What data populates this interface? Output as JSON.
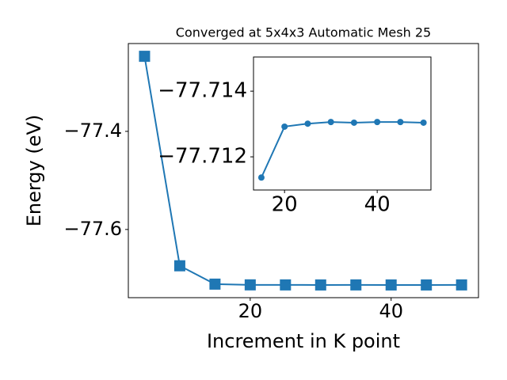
{
  "chart_data": [
    {
      "type": "line",
      "title": "Converged at 5x4x3 Automatic Mesh 25",
      "x_label": "Increment in K point",
      "y_label": "Energy (eV)",
      "x": [
        5,
        10,
        15,
        20,
        25,
        30,
        35,
        40,
        45,
        50
      ],
      "series": [
        {
          "color": "#1f77b4",
          "marker": "square",
          "values": [
            -77.247,
            -77.674,
            -77.7114,
            -77.7129,
            -77.713,
            -77.7131,
            -77.713,
            -77.7131,
            -77.7131,
            -77.713
          ]
        }
      ],
      "xlim": [
        2.7,
        52.4
      ],
      "xticks": [
        20,
        40
      ],
      "ylim": [
        -77.739,
        -77.221
      ],
      "yticks": [
        {
          "value": -77.6,
          "label": "−77.6"
        },
        {
          "value": -77.4,
          "label": "−77.4"
        }
      ]
    },
    {
      "type": "line",
      "x": [
        15,
        20,
        25,
        30,
        35,
        40,
        45,
        50
      ],
      "series": [
        {
          "color": "#1f77b4",
          "marker": "circle",
          "values": [
            -77.71137,
            -77.71292,
            -77.71301,
            -77.71306,
            -77.71304,
            -77.71306,
            -77.71306,
            -77.71304
          ]
        }
      ],
      "xlim": [
        13.3,
        51.6
      ],
      "xticks": [
        20,
        40
      ],
      "ylim": [
        -77.71099,
        -77.71504
      ],
      "yticks": [
        {
          "value": -77.712,
          "label": "−77.712"
        },
        {
          "value": -77.714,
          "label": "−77.714"
        }
      ]
    }
  ]
}
